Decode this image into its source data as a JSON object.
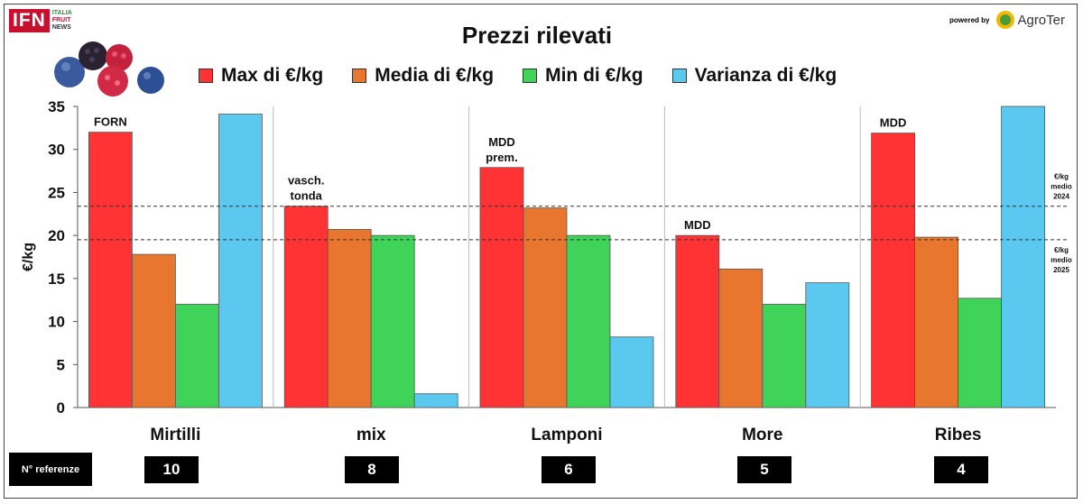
{
  "header": {
    "logo_mark": "IFN",
    "logo_line1": "ITALIA",
    "logo_line2": "FRUIT",
    "logo_line3": "NEWS",
    "powered_by": "powered by",
    "sponsor_name": "AgroTer"
  },
  "chart_data": {
    "type": "bar",
    "title": "Prezzi rilevati",
    "ylabel": "€/kg",
    "xlabel": "",
    "ylim": [
      0,
      35
    ],
    "yticks": [
      0,
      5,
      10,
      15,
      20,
      25,
      30,
      35
    ],
    "categories": [
      "Mirtilli",
      "mix",
      "Lamponi",
      "More",
      "Ribes"
    ],
    "series": [
      {
        "name": "Max di €/kg",
        "color": "#ff3333",
        "values": [
          32,
          23.4,
          27.9,
          20,
          31.9
        ]
      },
      {
        "name": "Media di €/kg",
        "color": "#e8762f",
        "values": [
          17.8,
          20.7,
          23.2,
          16.1,
          19.8
        ]
      },
      {
        "name": "Min di €/kg",
        "color": "#3fd35a",
        "values": [
          12,
          20,
          20,
          12,
          12.7
        ]
      },
      {
        "name": "Varianza di €/kg",
        "color": "#5bc8f0",
        "values": [
          34.1,
          1.6,
          8.2,
          14.5,
          35
        ]
      }
    ],
    "max_labels": [
      [
        "FORN"
      ],
      [
        "vasch.",
        "tonda"
      ],
      [
        "MDD",
        "prem."
      ],
      [
        "MDD"
      ],
      [
        "MDD"
      ]
    ],
    "reference_lines": [
      {
        "value": 23.4,
        "label": [
          "€/kg",
          "medio",
          "2024"
        ]
      },
      {
        "value": 19.5,
        "label": [
          "€/kg",
          "medio",
          "2025"
        ]
      }
    ],
    "grid": false,
    "legend_position": "top"
  },
  "references": {
    "label": "N° referenze",
    "counts": [
      "10",
      "8",
      "6",
      "5",
      "4"
    ]
  }
}
